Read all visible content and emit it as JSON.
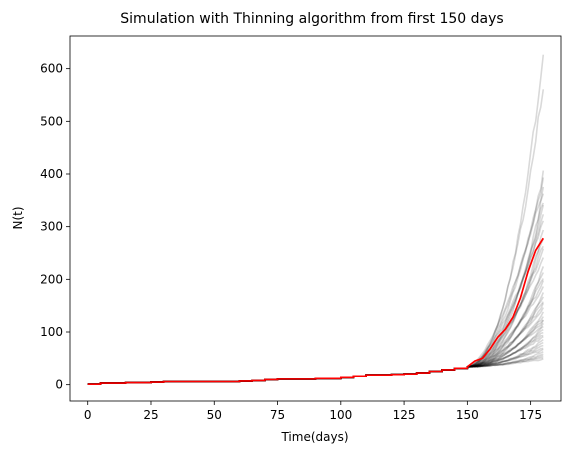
{
  "chart_data": {
    "type": "line",
    "title": "Simulation with Thinning algorithm from first 150 days",
    "xlabel": "Time(days)",
    "ylabel": "N(t)",
    "xlim": [
      -7,
      187
    ],
    "ylim": [
      -31,
      662
    ],
    "xticks": [
      0,
      25,
      50,
      75,
      100,
      125,
      150,
      175
    ],
    "yticks": [
      0,
      100,
      200,
      300,
      400,
      500,
      600
    ],
    "grid": false,
    "observed": {
      "x": [
        0,
        5,
        10,
        15,
        20,
        25,
        30,
        35,
        40,
        45,
        50,
        55,
        60,
        65,
        70,
        75,
        80,
        85,
        90,
        95,
        100,
        105,
        110,
        115,
        120,
        125,
        130,
        135,
        140,
        145,
        150
      ],
      "y": [
        1,
        3,
        3,
        4,
        4,
        5,
        6,
        6,
        6,
        6,
        6,
        6,
        7,
        8,
        10,
        11,
        11,
        11,
        12,
        12,
        14,
        16,
        18,
        18,
        19,
        20,
        22,
        25,
        28,
        31,
        34
      ]
    },
    "series": [
      {
        "color": "#ff0000",
        "x": [
          150,
          153,
          156,
          159,
          162,
          165,
          168,
          171,
          174,
          177,
          180
        ],
        "y": [
          34,
          45,
          50,
          68,
          90,
          105,
          128,
          165,
          215,
          255,
          278
        ]
      }
    ],
    "simulation_endpoints": [
      48,
      52,
      55,
      58,
      62,
      66,
      70,
      75,
      80,
      85,
      90,
      95,
      100,
      105,
      110,
      115,
      120,
      125,
      130,
      138,
      145,
      152,
      160,
      168,
      175,
      185,
      195,
      205,
      215,
      225,
      240,
      255,
      268,
      280,
      295,
      310,
      320,
      335,
      350,
      365,
      375,
      390,
      400,
      570,
      632
    ],
    "simulation_color": "#000000",
    "simulation_opacity": 0.15
  }
}
